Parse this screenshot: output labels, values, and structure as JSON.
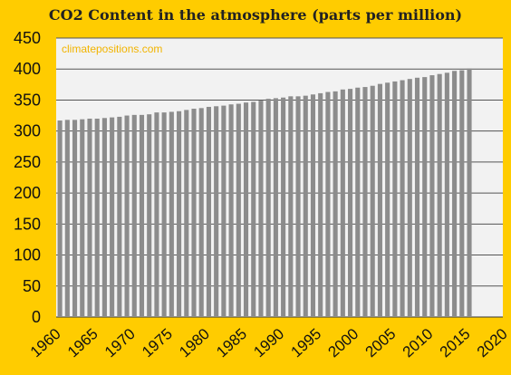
{
  "chart_data": {
    "type": "bar",
    "title": "CO2 Content in the atmosphere (parts per million)",
    "watermark": "climatepositions.com",
    "xlabel": "",
    "ylabel": "",
    "ylim": [
      0,
      450
    ],
    "yticks": [
      0,
      50,
      100,
      150,
      200,
      250,
      300,
      350,
      400,
      450
    ],
    "xlim": [
      1960,
      2020
    ],
    "xticks": [
      1960,
      1965,
      1970,
      1975,
      1980,
      1985,
      1990,
      1995,
      2000,
      2005,
      2010,
      2015,
      2020
    ],
    "grid": true,
    "legend": "none",
    "colors": {
      "background": "#ffcc00",
      "plot_area": "#f2f2f2",
      "bar": "#8c8c8c",
      "grid": "#555555",
      "watermark": "#f2b400"
    },
    "categories": [
      1960,
      1961,
      1962,
      1963,
      1964,
      1965,
      1966,
      1967,
      1968,
      1969,
      1970,
      1971,
      1972,
      1973,
      1974,
      1975,
      1976,
      1977,
      1978,
      1979,
      1980,
      1981,
      1982,
      1983,
      1984,
      1985,
      1986,
      1987,
      1988,
      1989,
      1990,
      1991,
      1992,
      1993,
      1994,
      1995,
      1996,
      1997,
      1998,
      1999,
      2000,
      2001,
      2002,
      2003,
      2004,
      2005,
      2006,
      2007,
      2008,
      2009,
      2010,
      2011,
      2012,
      2013,
      2014,
      2015
    ],
    "values": [
      317,
      318,
      318,
      319,
      320,
      320,
      321,
      322,
      323,
      325,
      326,
      326,
      327,
      330,
      330,
      331,
      332,
      334,
      336,
      337,
      339,
      340,
      341,
      343,
      344,
      346,
      347,
      349,
      352,
      353,
      354,
      356,
      356,
      357,
      359,
      361,
      363,
      364,
      367,
      368,
      370,
      371,
      373,
      376,
      378,
      380,
      382,
      384,
      386,
      387,
      390,
      392,
      394,
      397,
      398,
      401
    ]
  }
}
